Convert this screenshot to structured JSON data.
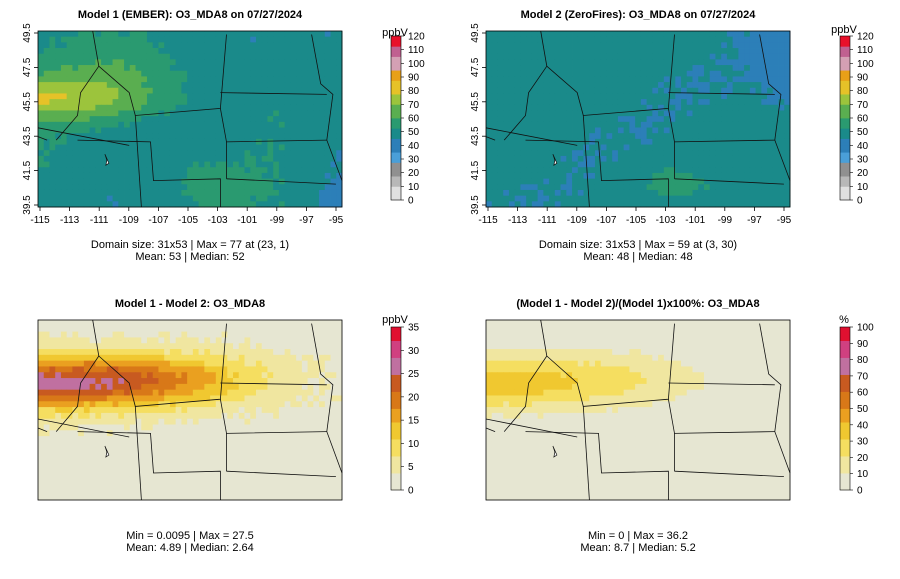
{
  "panels": [
    {
      "title": "Model 1 (EMBER): O3_MDA8 on 07/27/2024",
      "stats_line1": "Domain size: 31x53 | Max = 77 at (23, 1)",
      "stats_line2": "Mean: 53 |  Median: 52",
      "unit": "ppbV",
      "legend_ticks": [
        "120",
        "110",
        "100",
        "90",
        "80",
        "70",
        "60",
        "50",
        "40",
        "30",
        "20",
        "10",
        "0"
      ],
      "lon_ticks": [
        "-115",
        "-113",
        "-111",
        "-109",
        "-107",
        "-105",
        "-103",
        "-101",
        "-99",
        "-97",
        "-95"
      ],
      "lat_ticks": [
        "49.5",
        "47.5",
        "45.5",
        "43.5",
        "41.5",
        "39.5"
      ],
      "palette": "ozone"
    },
    {
      "title": "Model 2 (ZeroFires): O3_MDA8 on 07/27/2024",
      "stats_line1": "Domain size: 31x53 | Max = 59 at (3, 30)",
      "stats_line2": "Mean: 48 |  Median: 48",
      "unit": "ppbV",
      "legend_ticks": [
        "120",
        "110",
        "100",
        "90",
        "80",
        "70",
        "60",
        "50",
        "40",
        "30",
        "20",
        "10",
        "0"
      ],
      "lon_ticks": [
        "-115",
        "-113",
        "-111",
        "-109",
        "-107",
        "-105",
        "-103",
        "-101",
        "-99",
        "-97",
        "-95"
      ],
      "lat_ticks": [
        "49.5",
        "47.5",
        "45.5",
        "43.5",
        "41.5",
        "39.5"
      ],
      "palette": "ozone"
    },
    {
      "title": "Model 1 - Model 2: O3_MDA8",
      "stats_line1": "Min = 0.0095 | Max = 27.5",
      "stats_line2": "Mean: 4.89 |  Median: 2.64",
      "unit": "ppbV",
      "legend_ticks": [
        "35",
        "30",
        "25",
        "20",
        "15",
        "10",
        "5",
        "0"
      ],
      "palette": "diff"
    },
    {
      "title": "(Model 1 - Model 2)/(Model 1)x100%: O3_MDA8",
      "stats_line1": "Min = 0 | Max = 36.2",
      "stats_line2": "Mean: 8.7 |  Median: 5.2",
      "unit": "%",
      "legend_ticks": [
        "100",
        "90",
        "80",
        "70",
        "60",
        "50",
        "40",
        "30",
        "20",
        "10",
        "0"
      ],
      "palette": "diff"
    }
  ],
  "colors": {
    "ozone": [
      "#e0e0e0",
      "#b8b8b8",
      "#909090",
      "#4a9fd8",
      "#2c7fb8",
      "#1a8a8a",
      "#2a9a70",
      "#5aae50",
      "#9cc43c",
      "#e6c228",
      "#e8a018",
      "#d4a0b4",
      "#c06090",
      "#e8102a"
    ],
    "diff": [
      "#e6e6d2",
      "#f0e6a0",
      "#f5de60",
      "#f0c830",
      "#eaa020",
      "#d87818",
      "#c85a20",
      "#c070a0",
      "#d04080",
      "#e01030"
    ]
  }
}
